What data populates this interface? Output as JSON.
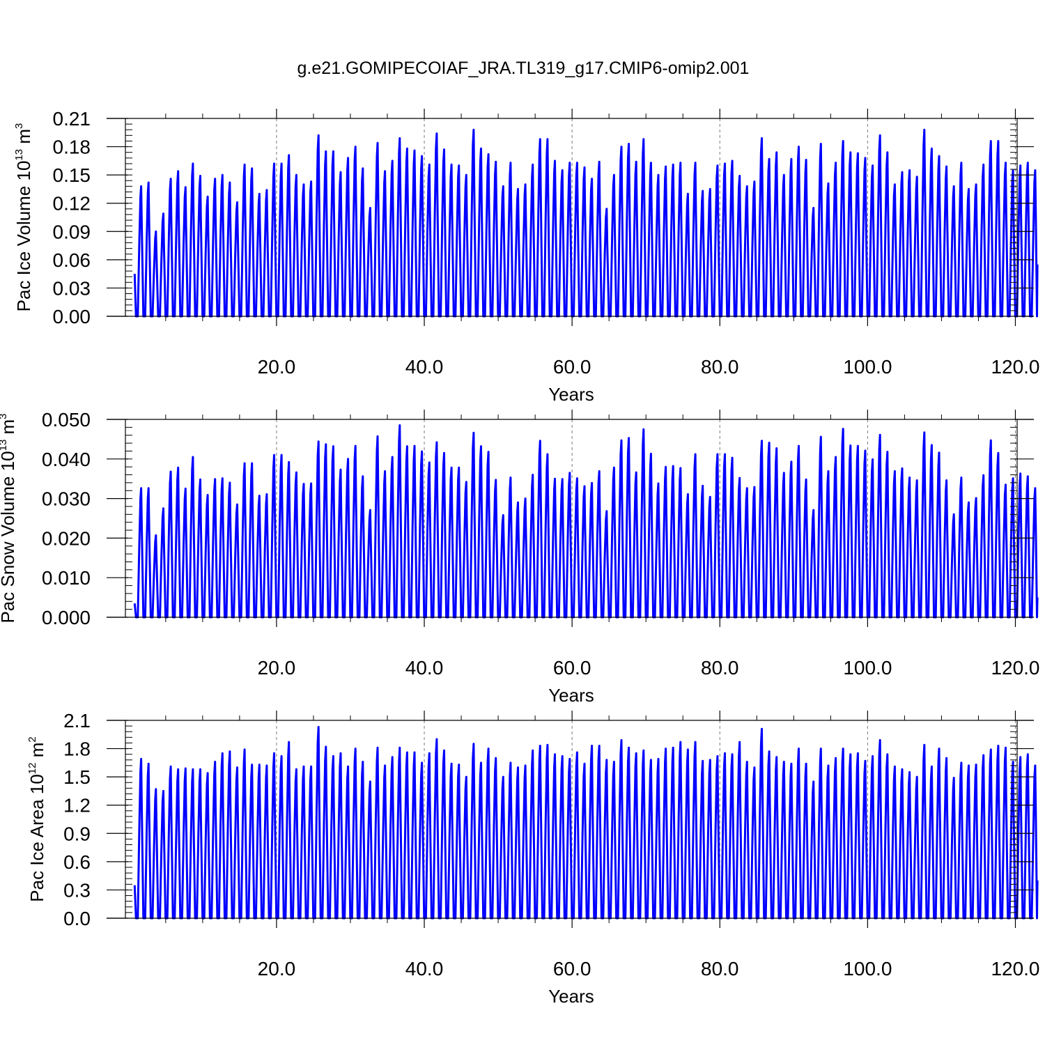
{
  "title": "g.e21.GOMIPECOIAF_JRA.TL319_g17.CMIP6-omip2.001",
  "colors": {
    "series": "#0000ff",
    "axis": "#000000",
    "grid": "#777777"
  },
  "chart_data": [
    {
      "type": "line",
      "title": "",
      "ylabel": {
        "main": "Pac Ice Volume 10",
        "exp": "13",
        "unit": " m",
        "unit_exp": "3"
      },
      "xlabel": "Years",
      "xlim": [
        -3,
        122.5
      ],
      "ylim": [
        0,
        0.21
      ],
      "xticks": [
        20,
        40,
        60,
        80,
        100,
        120
      ],
      "xtick_labels": [
        "20.0",
        "40.0",
        "60.0",
        "80.0",
        "100.0",
        "120.0"
      ],
      "yticks": [
        0,
        0.03,
        0.06,
        0.09,
        0.12,
        0.15,
        0.18,
        0.21
      ],
      "ytick_labels": [
        "0.00",
        "0.03",
        "0.06",
        "0.09",
        "0.12",
        "0.15",
        "0.18",
        "0.21"
      ],
      "grid": "vertical dashed at major x ticks",
      "series": [
        {
          "start_year": 0.8,
          "start_value": 0.045,
          "end_value": 0.055,
          "annual_max": [
            0.138,
            0.142,
            0.09,
            0.109,
            0.146,
            0.154,
            0.137,
            0.162,
            0.149,
            0.127,
            0.146,
            0.15,
            0.142,
            0.121,
            0.161,
            0.157,
            0.13,
            0.134,
            0.162,
            0.162,
            0.171,
            0.15,
            0.14,
            0.143,
            0.192,
            0.175,
            0.175,
            0.153,
            0.168,
            0.18,
            0.157,
            0.115,
            0.184,
            0.154,
            0.165,
            0.189,
            0.178,
            0.176,
            0.17,
            0.161,
            0.194,
            0.177,
            0.161,
            0.16,
            0.15,
            0.198,
            0.178,
            0.172,
            0.164,
            0.138,
            0.163,
            0.135,
            0.14,
            0.161,
            0.188,
            0.188,
            0.165,
            0.155,
            0.163,
            0.163,
            0.158,
            0.146,
            0.164,
            0.114,
            0.15,
            0.18,
            0.183,
            0.164,
            0.188,
            0.163,
            0.15,
            0.159,
            0.161,
            0.163,
            0.13,
            0.163,
            0.133,
            0.135,
            0.16,
            0.162,
            0.165,
            0.149,
            0.138,
            0.143,
            0.189,
            0.167,
            0.174,
            0.15,
            0.167,
            0.18,
            0.166,
            0.115,
            0.183,
            0.141,
            0.163,
            0.186,
            0.174,
            0.173,
            0.168,
            0.16,
            0.192,
            0.174,
            0.14,
            0.153,
            0.155,
            0.148,
            0.198,
            0.178,
            0.17,
            0.159,
            0.138,
            0.163,
            0.135,
            0.14,
            0.161,
            0.186,
            0.186,
            0.163,
            0.155,
            0.16,
            0.163,
            0.155
          ]
        }
      ]
    },
    {
      "type": "line",
      "title": "",
      "ylabel": {
        "main": "Pac Snow Volume 10",
        "exp": "13",
        "unit": " m",
        "unit_exp": "3"
      },
      "xlabel": "Years",
      "xlim": [
        -3,
        122.5
      ],
      "ylim": [
        0,
        0.05
      ],
      "xticks": [
        20,
        40,
        60,
        80,
        100,
        120
      ],
      "xtick_labels": [
        "20.0",
        "40.0",
        "60.0",
        "80.0",
        "100.0",
        "120.0"
      ],
      "yticks": [
        0,
        0.01,
        0.02,
        0.03,
        0.04,
        0.05
      ],
      "ytick_labels": [
        "0.000",
        "0.010",
        "0.020",
        "0.030",
        "0.040",
        "0.050"
      ],
      "grid": "vertical dashed at major x ticks",
      "series": [
        {
          "start_year": 0.8,
          "start_value": 0.0035,
          "end_value": 0.005,
          "annual_max": [
            0.0326,
            0.0326,
            0.0207,
            0.0275,
            0.0368,
            0.0378,
            0.0325,
            0.0405,
            0.0348,
            0.0309,
            0.0349,
            0.0351,
            0.034,
            0.0285,
            0.0389,
            0.0389,
            0.0307,
            0.0311,
            0.041,
            0.041,
            0.0392,
            0.0366,
            0.0337,
            0.0338,
            0.0444,
            0.0437,
            0.0432,
            0.0373,
            0.04,
            0.0433,
            0.0356,
            0.0271,
            0.0457,
            0.0369,
            0.0405,
            0.0485,
            0.0432,
            0.0433,
            0.0419,
            0.0391,
            0.0442,
            0.0415,
            0.0378,
            0.0378,
            0.0342,
            0.0466,
            0.0432,
            0.0418,
            0.0347,
            0.0258,
            0.0353,
            0.029,
            0.03,
            0.036,
            0.0446,
            0.0412,
            0.035,
            0.0349,
            0.0365,
            0.0351,
            0.0331,
            0.0339,
            0.0369,
            0.0268,
            0.0378,
            0.0447,
            0.0453,
            0.0366,
            0.0475,
            0.0413,
            0.0338,
            0.038,
            0.0382,
            0.0377,
            0.0311,
            0.0412,
            0.0332,
            0.0304,
            0.0412,
            0.0412,
            0.0403,
            0.0352,
            0.0326,
            0.0329,
            0.0446,
            0.0441,
            0.0427,
            0.0365,
            0.0393,
            0.0433,
            0.0348,
            0.0271,
            0.0456,
            0.0369,
            0.0405,
            0.0476,
            0.0434,
            0.0433,
            0.0421,
            0.0399,
            0.0461,
            0.0418,
            0.0369,
            0.0376,
            0.0353,
            0.0346,
            0.0467,
            0.0435,
            0.0416,
            0.0346,
            0.026,
            0.0353,
            0.029,
            0.0301,
            0.0359,
            0.0447,
            0.0415,
            0.0335,
            0.0351,
            0.0363,
            0.0356,
            0.0326
          ]
        }
      ]
    },
    {
      "type": "line",
      "title": "",
      "ylabel": {
        "main": "Pac Ice Area 10",
        "exp": "12",
        "unit": " m",
        "unit_exp": "2"
      },
      "xlabel": "Years",
      "xlim": [
        -3,
        122.5
      ],
      "ylim": [
        0,
        2.1
      ],
      "xticks": [
        20,
        40,
        60,
        80,
        100,
        120
      ],
      "xtick_labels": [
        "20.0",
        "40.0",
        "60.0",
        "80.0",
        "100.0",
        "120.0"
      ],
      "yticks": [
        0,
        0.3,
        0.6,
        0.9,
        1.2,
        1.5,
        1.8,
        2.1
      ],
      "ytick_labels": [
        "0.0",
        "0.3",
        "0.6",
        "0.9",
        "1.2",
        "1.5",
        "1.8",
        "2.1"
      ],
      "grid": "vertical dashed at major x ticks",
      "series": [
        {
          "start_year": 0.8,
          "start_value": 0.35,
          "end_value": 0.4,
          "annual_max": [
            1.69,
            1.64,
            1.37,
            1.35,
            1.61,
            1.58,
            1.59,
            1.58,
            1.58,
            1.54,
            1.66,
            1.75,
            1.77,
            1.6,
            1.79,
            1.63,
            1.63,
            1.62,
            1.75,
            1.72,
            1.87,
            1.58,
            1.61,
            1.61,
            2.03,
            1.82,
            1.72,
            1.75,
            1.61,
            1.8,
            1.66,
            1.45,
            1.81,
            1.62,
            1.71,
            1.81,
            1.76,
            1.76,
            1.65,
            1.75,
            1.9,
            1.78,
            1.64,
            1.63,
            1.5,
            1.85,
            1.65,
            1.8,
            1.7,
            1.5,
            1.65,
            1.6,
            1.62,
            1.78,
            1.83,
            1.84,
            1.74,
            1.72,
            1.69,
            1.76,
            1.64,
            1.83,
            1.83,
            1.68,
            1.66,
            1.89,
            1.81,
            1.75,
            1.78,
            1.68,
            1.69,
            1.8,
            1.81,
            1.87,
            1.79,
            1.87,
            1.67,
            1.68,
            1.72,
            1.75,
            1.74,
            1.87,
            1.66,
            1.6,
            2.01,
            1.77,
            1.71,
            1.66,
            1.64,
            1.8,
            1.64,
            1.45,
            1.8,
            1.62,
            1.7,
            1.8,
            1.74,
            1.75,
            1.67,
            1.72,
            1.89,
            1.74,
            1.61,
            1.58,
            1.55,
            1.5,
            1.84,
            1.61,
            1.8,
            1.7,
            1.49,
            1.65,
            1.62,
            1.63,
            1.73,
            1.79,
            1.83,
            1.81,
            1.66,
            1.71,
            1.74,
            1.62
          ]
        }
      ]
    }
  ]
}
